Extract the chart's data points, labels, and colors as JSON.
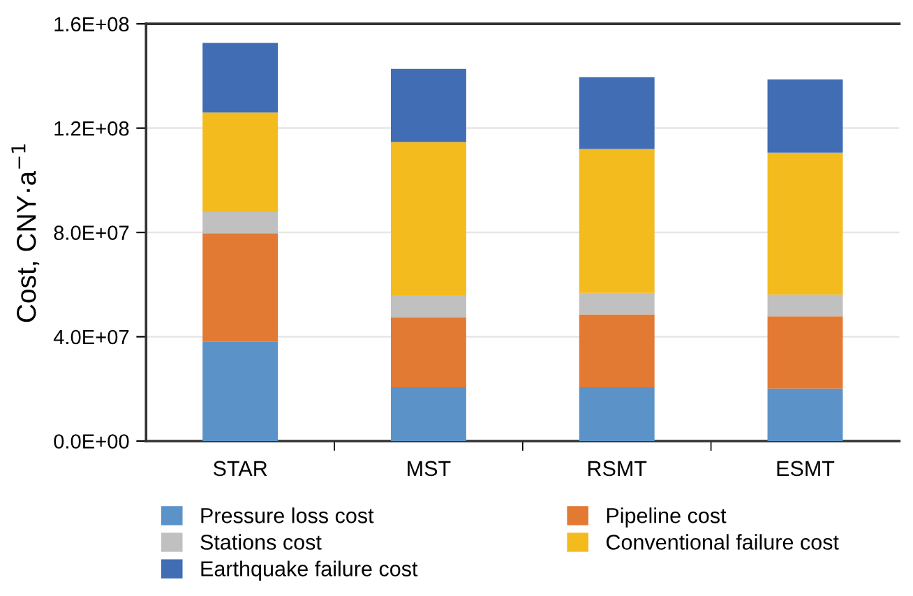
{
  "chart_data": {
    "type": "bar",
    "stacked": true,
    "ylabel": "Cost, CNY·a$^{−1}$",
    "categories": [
      "STAR",
      "MST",
      "RSMT",
      "ESMT"
    ],
    "series": [
      {
        "name": "Pressure loss cost",
        "color": "#5b93c9",
        "values": [
          38200000,
          20600000,
          20600000,
          20100000
        ]
      },
      {
        "name": "Pipeline cost",
        "color": "#e27a34",
        "values": [
          41500000,
          26900000,
          28000000,
          27700000
        ]
      },
      {
        "name": "Stations cost",
        "color": "#bfc0bf",
        "values": [
          8100000,
          8400000,
          8200000,
          8300000
        ]
      },
      {
        "name": "Conventional failure cost",
        "color": "#f4bb1e",
        "values": [
          38200000,
          58800000,
          55200000,
          54500000
        ]
      },
      {
        "name": "Earthquake failure cost",
        "color": "#406db4",
        "values": [
          26700000,
          28000000,
          27600000,
          28100000
        ]
      }
    ],
    "ylim": [
      0,
      160000000
    ],
    "yticks": [
      {
        "value": 0,
        "label": "0.0E+00"
      },
      {
        "value": 40000000,
        "label": "4.0E+07"
      },
      {
        "value": 80000000,
        "label": "8.0E+07"
      },
      {
        "value": 120000000,
        "label": "1.2E+08"
      },
      {
        "value": 160000000,
        "label": "1.6E+08"
      }
    ],
    "grid": "y",
    "legend": "bottom"
  }
}
